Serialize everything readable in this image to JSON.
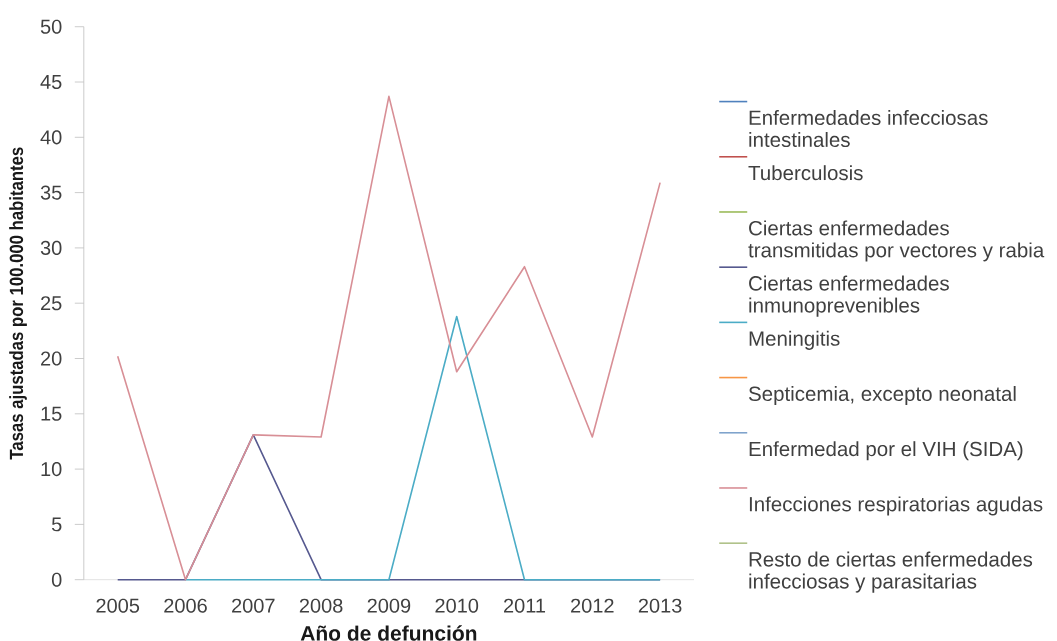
{
  "chart_data": {
    "type": "line",
    "xlabel": "Año de defunción",
    "ylabel": "Tasas ajustadas por 100.000 habitantes",
    "categories": [
      "2005",
      "2006",
      "2007",
      "2008",
      "2009",
      "2010",
      "2011",
      "2012",
      "2013"
    ],
    "ylim": [
      0,
      50
    ],
    "yticks": [
      0,
      5,
      10,
      15,
      20,
      25,
      30,
      35,
      40,
      45,
      50
    ],
    "grid": false,
    "legend": "right",
    "marker": "none",
    "line_style": "solid",
    "series": [
      {
        "name": "Enfermedades infecciosas intestinales",
        "color": "#4f81bd",
        "values": [
          null,
          null,
          null,
          null,
          null,
          null,
          null,
          null,
          null
        ]
      },
      {
        "name": "Tuberculosis",
        "color": "#c0504d",
        "values": [
          null,
          null,
          null,
          null,
          null,
          null,
          null,
          null,
          null
        ]
      },
      {
        "name": "Ciertas enfermedades transmitidas por vectores y rabia",
        "color": "#9bbb59",
        "values": [
          null,
          null,
          null,
          null,
          null,
          null,
          null,
          null,
          null
        ]
      },
      {
        "name": "Ciertas enfermedades inmunoprevenibles",
        "color": "#56598f",
        "values": [
          0,
          0,
          13.1,
          0,
          0,
          0,
          0,
          0,
          0
        ]
      },
      {
        "name": "Meningitis",
        "color": "#4bacc6",
        "values": [
          null,
          0,
          0,
          0,
          0,
          23.8,
          0,
          0,
          0
        ]
      },
      {
        "name": "Septicemia, excepto neonatal",
        "color": "#f79646",
        "values": [
          null,
          null,
          null,
          null,
          null,
          null,
          null,
          null,
          null
        ]
      },
      {
        "name": "Enfermedad por el VIH (SIDA)",
        "color": "#7fa3cc",
        "values": [
          null,
          null,
          null,
          null,
          null,
          null,
          null,
          null,
          null
        ]
      },
      {
        "name": "Infecciones respiratorias agudas",
        "color": "#d88f96",
        "values": [
          20.2,
          0,
          13.1,
          12.9,
          43.7,
          18.8,
          28.3,
          12.9,
          35.9
        ]
      },
      {
        "name": "Resto de ciertas enfermedades infecciosas y parasitarias",
        "color": "#b0c28a",
        "values": [
          null,
          null,
          null,
          null,
          null,
          null,
          null,
          null,
          null
        ]
      }
    ]
  }
}
